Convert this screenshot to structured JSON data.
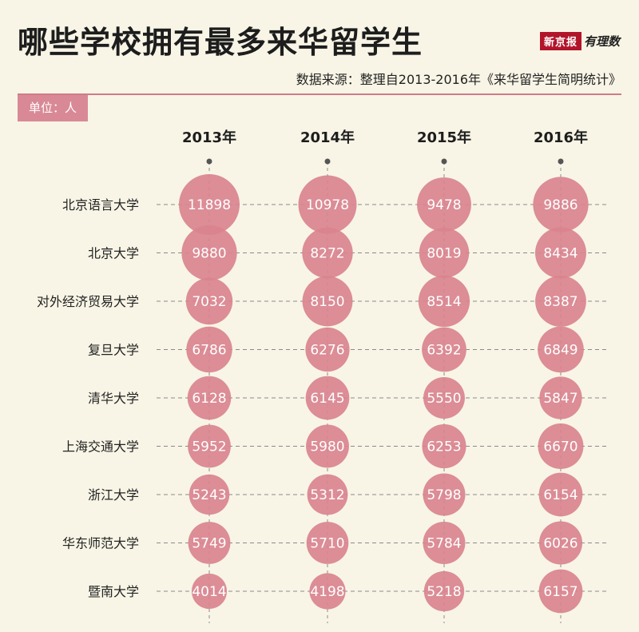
{
  "header": {
    "title": "哪些学校拥有最多来华留学生",
    "source": "数据来源：整理自2013-2016年《来华留学生简明统计》",
    "unit": "单位：人",
    "logo_box": "新京报",
    "logo_script": "有理数"
  },
  "colors": {
    "bubble": "#d9838f",
    "accent": "#d07a88",
    "background": "#f8f5e6"
  },
  "chart_data": {
    "type": "bubble",
    "x": [
      "2013年",
      "2014年",
      "2015年",
      "2016年"
    ],
    "categories": [
      "北京语言大学",
      "北京大学",
      "对外经济贸易大学",
      "复旦大学",
      "清华大学",
      "上海交通大学",
      "浙江大学",
      "华东师范大学",
      "暨南大学"
    ],
    "series": [
      {
        "name": "2013年",
        "values": [
          11898,
          9880,
          7032,
          6786,
          6128,
          5952,
          5243,
          5749,
          4014
        ]
      },
      {
        "name": "2014年",
        "values": [
          10978,
          8272,
          8150,
          6276,
          6145,
          5980,
          5312,
          5710,
          4198
        ]
      },
      {
        "name": "2015年",
        "values": [
          9478,
          8019,
          8514,
          6392,
          5550,
          6253,
          5798,
          5784,
          5218
        ]
      },
      {
        "name": "2016年",
        "values": [
          9886,
          8434,
          8387,
          6849,
          5847,
          6670,
          6154,
          6026,
          6157
        ]
      }
    ]
  }
}
